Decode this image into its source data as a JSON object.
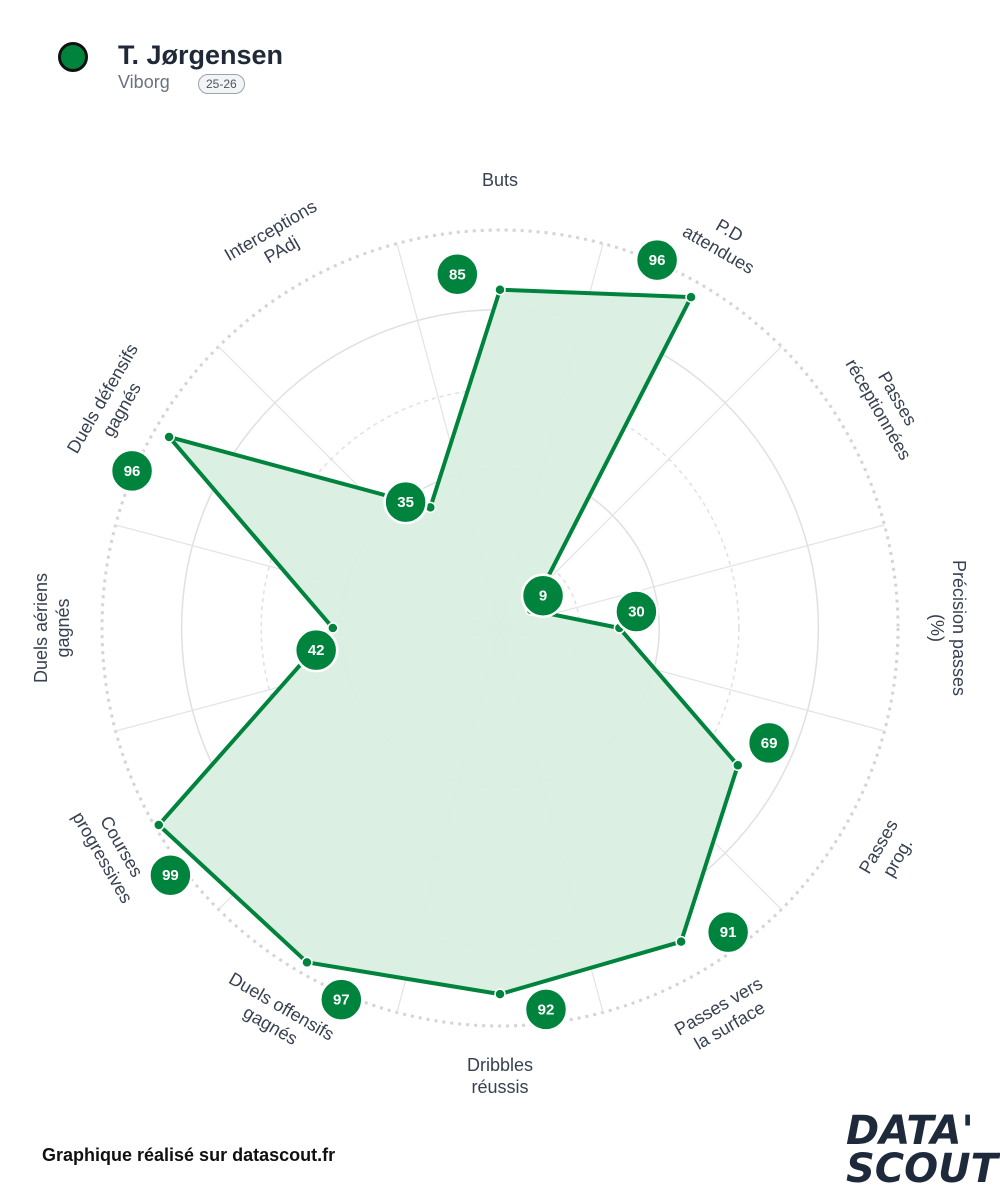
{
  "header": {
    "player": "T. Jørgensen",
    "team": "Viborg",
    "season": "25-26"
  },
  "footer": {
    "credit": "Graphique réalisé sur datascout.fr",
    "logo_line1": "DATA'",
    "logo_line2": "SCOUT"
  },
  "colors": {
    "accent": "#00843D",
    "fill": "#d9eee2",
    "grid": "#dddddd"
  },
  "chart_data": {
    "type": "radar",
    "scale": [
      0,
      100
    ],
    "categories": [
      "Buts",
      "P.D attendues",
      "Passes réceptionnées",
      "Précision passes (%)",
      "Passes prog.",
      "Passes vers la surface",
      "Dribbles réussis",
      "Duels offensifs gagnés",
      "Courses progressives",
      "Duels aériens gagnés",
      "Duels défensifs gagnés",
      "Interceptions PAdj"
    ],
    "category_lines": [
      [
        "Buts"
      ],
      [
        "P.D",
        "attendues"
      ],
      [
        "Passes",
        "réceptionnées"
      ],
      [
        "Précision passes",
        "(%)"
      ],
      [
        "Passes",
        "prog."
      ],
      [
        "Passes vers",
        "la surface"
      ],
      [
        "Dribbles",
        "réussis"
      ],
      [
        "Duels offensifs",
        "gagnés"
      ],
      [
        "Courses",
        "progressives"
      ],
      [
        "Duels aériens",
        "gagnés"
      ],
      [
        "Duels défensifs",
        "gagnés"
      ],
      [
        "Interceptions",
        "PAdj"
      ]
    ],
    "values": [
      85,
      96,
      9,
      30,
      69,
      91,
      92,
      97,
      99,
      42,
      96,
      35
    ]
  }
}
